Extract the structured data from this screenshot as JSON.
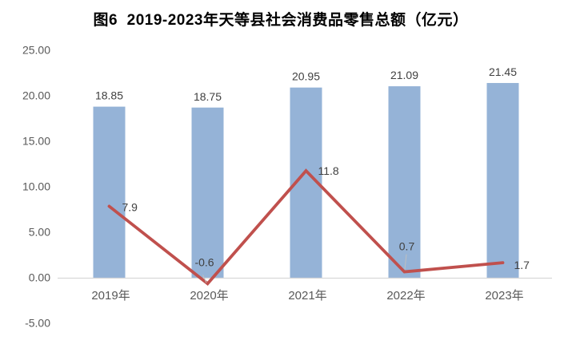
{
  "chart_data": {
    "type": "combo_bar_line",
    "title": "图6  2019-2023年天等县社会消费品零售总额（亿元）",
    "categories": [
      "2019年",
      "2020年",
      "2021年",
      "2022年",
      "2023年"
    ],
    "series": [
      {
        "type": "bar",
        "values": [
          18.85,
          18.75,
          20.95,
          21.09,
          21.45
        ],
        "labels": [
          "18.85",
          "18.75",
          "20.95",
          "21.09",
          "21.45"
        ],
        "color": "#95B3D7"
      },
      {
        "type": "line",
        "values": [
          7.9,
          -0.6,
          11.8,
          0.7,
          1.7
        ],
        "labels": [
          "7.9",
          "-0.6",
          "11.8",
          "0.7",
          "1.7"
        ],
        "color": "#C0504D"
      }
    ],
    "y_axis": {
      "tick_labels": [
        "25.00",
        "20.00",
        "15.00",
        "10.00",
        "5.00",
        "0.00",
        "-5.00"
      ],
      "tick_values": [
        25,
        20,
        15,
        10,
        5,
        0,
        -5
      ],
      "min": -5,
      "max": 25
    },
    "grid": false,
    "legend": "none",
    "colors": {
      "background": "#FFFFFF",
      "axis_line": "#D9D9D9",
      "tick_text": "#595959",
      "value_label_text": "#404040",
      "leader_line": "#BFBFBF",
      "title_text": "#000000"
    }
  }
}
